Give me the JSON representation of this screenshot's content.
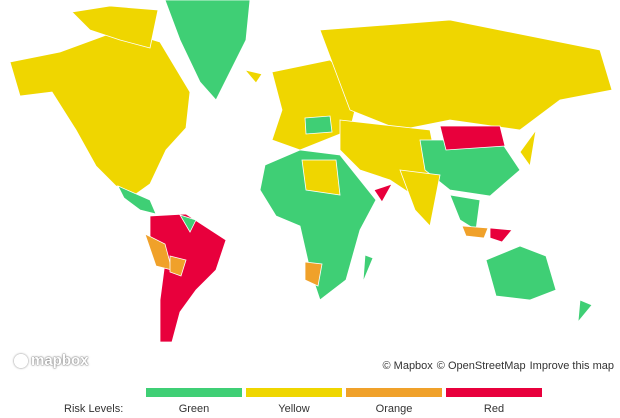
{
  "logo": "mapbox",
  "attribution": {
    "mapbox": "© Mapbox",
    "openstreetmap": "© OpenStreetMap",
    "improve": "Improve this map"
  },
  "legend": {
    "title": "Risk Levels:",
    "items": [
      {
        "label": "Green",
        "color": "#3fcf75"
      },
      {
        "label": "Yellow",
        "color": "#efd600"
      },
      {
        "label": "Orange",
        "color": "#f0a12a"
      },
      {
        "label": "Red",
        "color": "#e8003c"
      }
    ]
  }
}
